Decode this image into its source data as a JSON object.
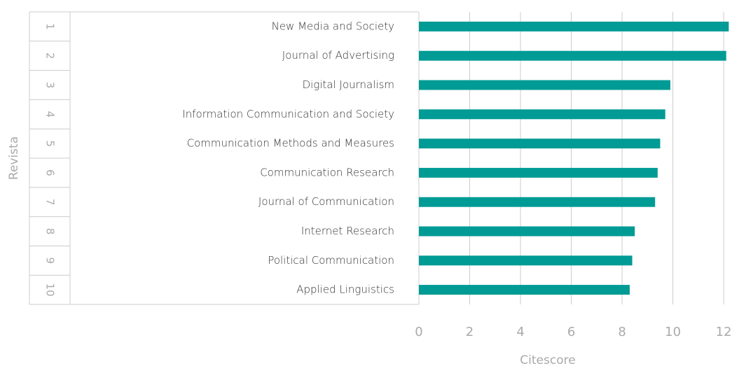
{
  "chart_data": {
    "type": "bar",
    "orientation": "horizontal",
    "categories": [
      "New Media and Society",
      "Journal of Advertising",
      "Digital Journalism",
      "Information Communication and Society",
      "Communication Methods and Measures",
      "Communication Research",
      "Journal of Communication",
      "Internet Research",
      "Political Communication",
      "Applied Linguistics"
    ],
    "ranks": [
      "1",
      "2",
      "3",
      "4",
      "5",
      "6",
      "7",
      "8",
      "9",
      "10"
    ],
    "values": [
      12.2,
      12.1,
      9.9,
      9.7,
      9.5,
      9.4,
      9.3,
      8.5,
      8.4,
      8.3
    ],
    "color": "#009b95",
    "xlim": [
      0,
      12.3
    ],
    "xticks": [
      0,
      2,
      4,
      6,
      8,
      10,
      12
    ],
    "grid": true,
    "x_label": "Citescore",
    "y_label": "Revista"
  }
}
